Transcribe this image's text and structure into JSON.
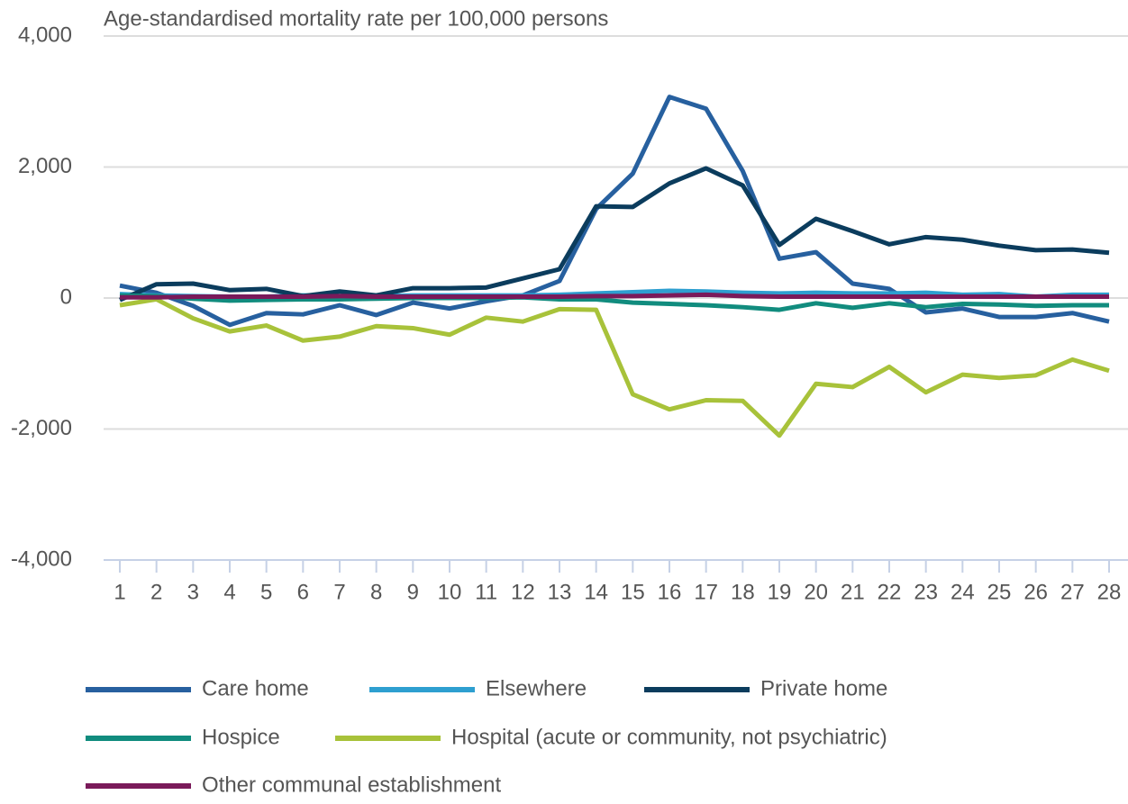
{
  "chart_data": {
    "type": "line",
    "y_axis_label": "Age-standardised mortality rate per 100,000 persons",
    "categories": [
      "1",
      "2",
      "3",
      "4",
      "5",
      "6",
      "7",
      "8",
      "9",
      "10",
      "11",
      "12",
      "13",
      "14",
      "15",
      "16",
      "17",
      "18",
      "19",
      "20",
      "21",
      "22",
      "23",
      "24",
      "25",
      "26",
      "27",
      "28"
    ],
    "ylim": [
      -4000,
      4000
    ],
    "yticks": [
      {
        "value": -4000,
        "label": "-4,000"
      },
      {
        "value": -2000,
        "label": "-2,000"
      },
      0,
      {
        "value": 2000,
        "label": "2,000"
      },
      {
        "value": 4000,
        "label": "4,000"
      }
    ],
    "grid": true,
    "legend": "bottom",
    "series": [
      {
        "name": "Care home",
        "color": "#27609f",
        "values": [
          190,
          80,
          -120,
          -410,
          -230,
          -250,
          -110,
          -260,
          -70,
          -160,
          -50,
          40,
          260,
          1360,
          1900,
          3070,
          2890,
          1940,
          600,
          700,
          220,
          140,
          -220,
          -160,
          -290,
          -290,
          -230,
          -360
        ]
      },
      {
        "name": "Elsewhere",
        "color": "#2e9fd0",
        "values": [
          60,
          40,
          30,
          20,
          20,
          40,
          30,
          30,
          40,
          40,
          40,
          40,
          50,
          70,
          90,
          110,
          100,
          80,
          70,
          80,
          70,
          70,
          80,
          50,
          60,
          20,
          50,
          50
        ]
      },
      {
        "name": "Private home",
        "color": "#0b3c5d",
        "values": [
          -30,
          210,
          220,
          120,
          140,
          30,
          100,
          40,
          150,
          150,
          160,
          300,
          440,
          1400,
          1390,
          1750,
          1980,
          1720,
          810,
          1210,
          1020,
          820,
          930,
          890,
          800,
          730,
          740,
          690
        ]
      },
      {
        "name": "Hospice",
        "color": "#118c7e",
        "values": [
          40,
          30,
          -10,
          -40,
          -30,
          -20,
          -20,
          -10,
          0,
          0,
          0,
          10,
          -20,
          -20,
          -70,
          -90,
          -110,
          -140,
          -180,
          -80,
          -150,
          -80,
          -140,
          -90,
          -100,
          -120,
          -110,
          -110
        ]
      },
      {
        "name": "Hospital (acute or community, not psychiatric)",
        "color": "#a8c23a",
        "values": [
          -110,
          -20,
          -310,
          -510,
          -420,
          -650,
          -590,
          -430,
          -460,
          -560,
          -300,
          -360,
          -170,
          -180,
          -1470,
          -1700,
          -1560,
          -1570,
          -2100,
          -1310,
          -1360,
          -1050,
          -1440,
          -1170,
          -1220,
          -1180,
          -940,
          -1110
        ]
      },
      {
        "name": "Other communal establishment",
        "color": "#7a1a5a",
        "values": [
          10,
          10,
          20,
          20,
          20,
          20,
          30,
          20,
          20,
          20,
          20,
          20,
          20,
          30,
          30,
          40,
          50,
          30,
          20,
          20,
          20,
          20,
          20,
          20,
          20,
          20,
          20,
          20
        ]
      }
    ]
  }
}
